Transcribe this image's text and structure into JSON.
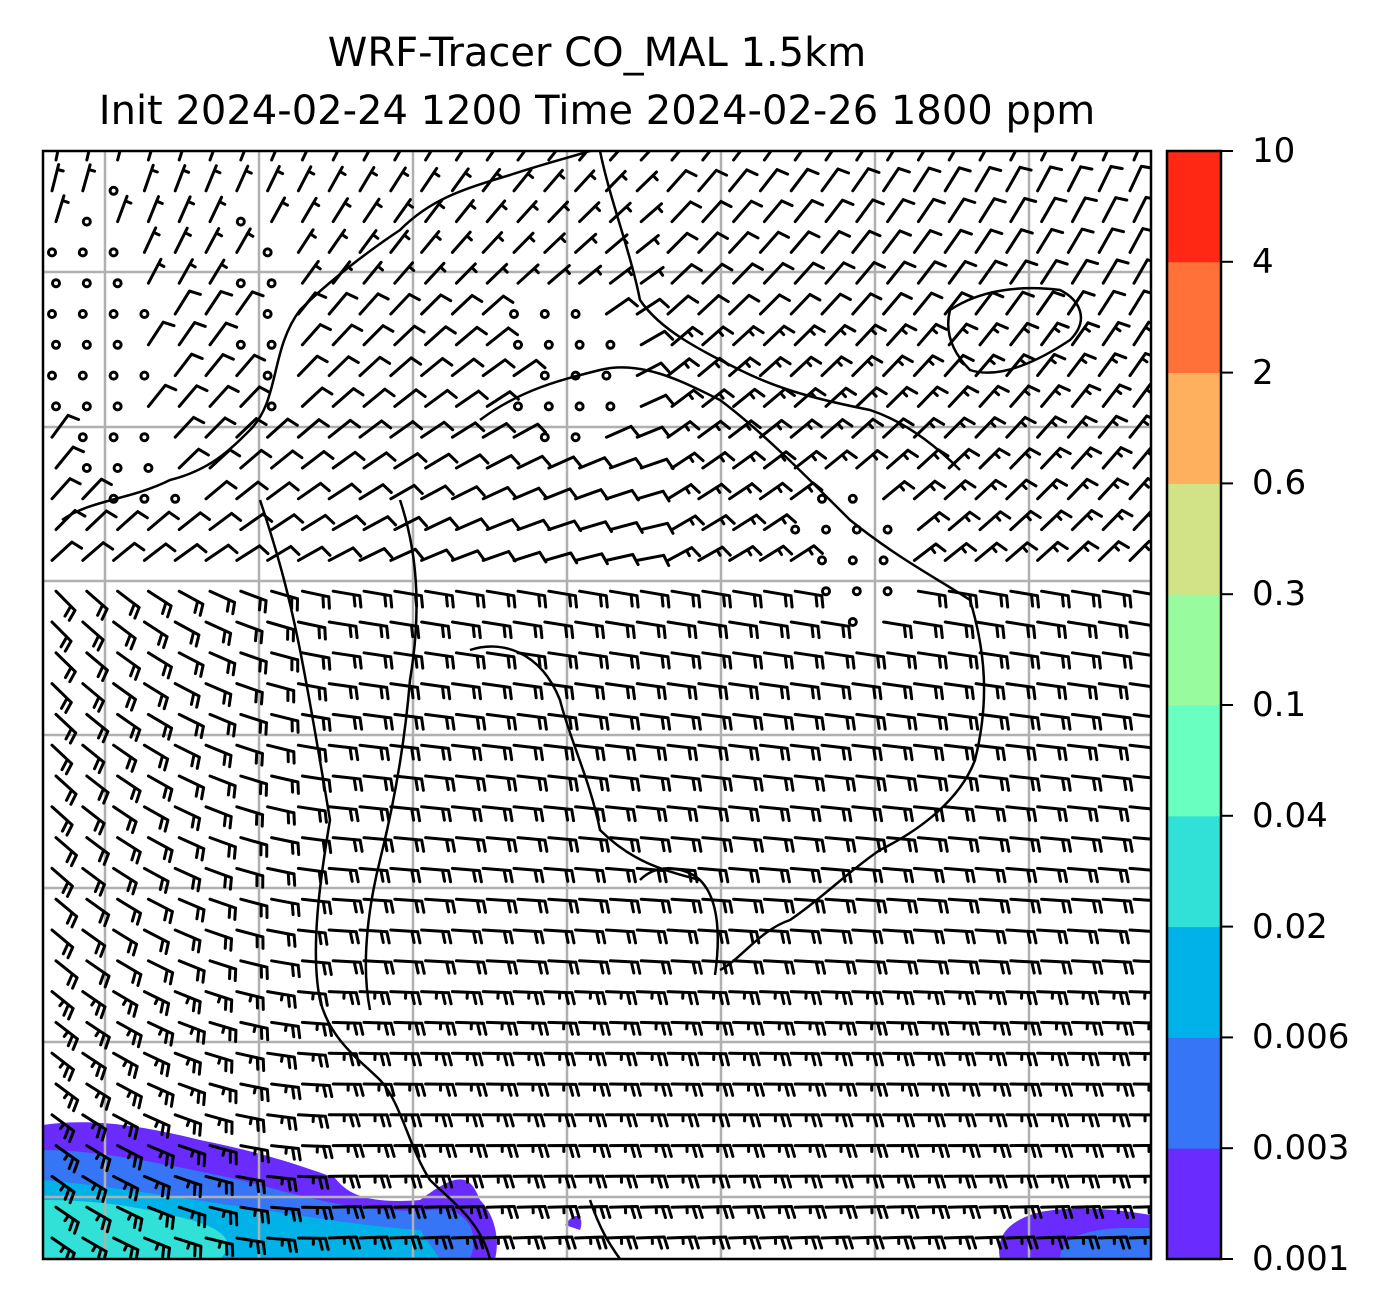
{
  "title": {
    "line1": "WRF-Tracer CO_MAL 1.5km",
    "line2": "Init 2024-02-24 1200 Time 2024-02-26 1800 ppm"
  },
  "colorbar": {
    "levels": [
      "0.001",
      "0.003",
      "0.006",
      "0.02",
      "0.04",
      "0.1",
      "0.3",
      "0.6",
      "2",
      "4",
      "10"
    ],
    "colors": [
      "#6a2bff",
      "#3675f5",
      "#00b2e8",
      "#31e1d7",
      "#68ffc1",
      "#98fc9f",
      "#d1e287",
      "#ffb05f",
      "#ff7139",
      "#ff2815"
    ]
  },
  "map": {
    "coastline_color": "#000000",
    "grid_color": "#b0b0b0",
    "barb_color": "#000000"
  }
}
